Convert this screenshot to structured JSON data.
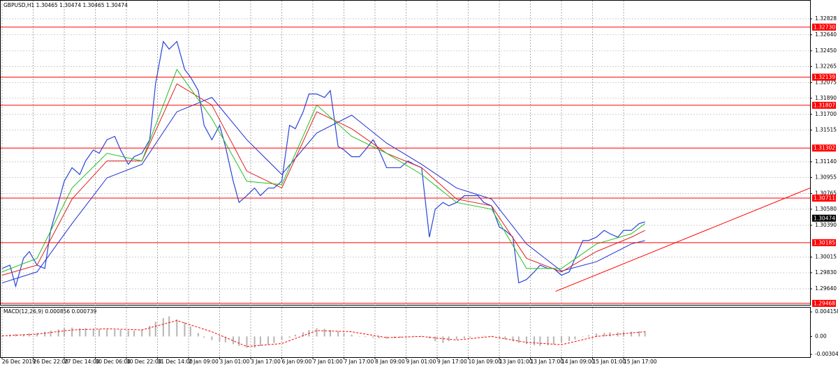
{
  "chart_data": [
    {
      "type": "line",
      "title": "GBPUSD,H1 1.30465 1.30474 1.30465 1.30474",
      "xlim": [
        0,
        416
      ],
      "ylim": [
        1.29451,
        1.3305
      ],
      "grid": true,
      "xticks": [
        {
          "value": 0,
          "label": "26 Dec 2019"
        },
        {
          "value": 16,
          "label": "26 Dec 22:00"
        },
        {
          "value": 32,
          "label": "27 Dec 14:00"
        },
        {
          "value": 48,
          "label": "30 Dec 06:00"
        },
        {
          "value": 64,
          "label": "30 Dec 22:00"
        },
        {
          "value": 80,
          "label": "31 Dec 14:00"
        },
        {
          "value": 96,
          "label": "2 Jan 09:00"
        },
        {
          "value": 112,
          "label": "3 Jan 01:00"
        },
        {
          "value": 128,
          "label": "3 Jan 17:00"
        },
        {
          "value": 144,
          "label": "6 Jan 09:00"
        },
        {
          "value": 160,
          "label": "7 Jan 01:00"
        },
        {
          "value": 176,
          "label": "7 Jan 17:00"
        },
        {
          "value": 192,
          "label": "8 Jan 09:00"
        },
        {
          "value": 208,
          "label": "9 Jan 01:00"
        },
        {
          "value": 224,
          "label": "9 Jan 17:00"
        },
        {
          "value": 240,
          "label": "10 Jan 09:00"
        },
        {
          "value": 256,
          "label": "13 Jan 01:00"
        },
        {
          "value": 272,
          "label": "13 Jan 17:00"
        },
        {
          "value": 288,
          "label": "14 Jan 09:00"
        },
        {
          "value": 304,
          "label": "15 Jan 01:00"
        },
        {
          "value": 320,
          "label": "15 Jan 17:00"
        }
      ],
      "yticks": [
        1.32828,
        {
          "value": 1.3264,
          "label": "1.32640"
        },
        {
          "value": 1.3245,
          "label": "1.32450"
        },
        1.32265,
        1.32075,
        {
          "value": 1.3189,
          "label": "1.31890"
        },
        {
          "value": 1.317,
          "label": "1.31700"
        },
        1.31515,
        {
          "value": 1.3114,
          "label": "1.31140"
        },
        1.30955,
        1.30765,
        {
          "value": 1.3058,
          "label": "1.30580"
        },
        {
          "value": 1.3039,
          "label": "1.30390"
        },
        1.30015,
        {
          "value": 1.2983,
          "label": "1.29830"
        },
        {
          "value": 1.2964,
          "label": "1.29640"
        }
      ],
      "series": [
        {
          "color": "#2846d8",
          "x": [
            0,
            4,
            7,
            11,
            14,
            18,
            22,
            25,
            29,
            32,
            36,
            40,
            43,
            47,
            50,
            54,
            58,
            61,
            65,
            68,
            72,
            76,
            79,
            83,
            86,
            90,
            94,
            97,
            101,
            104,
            108,
            112,
            115,
            119,
            122,
            126,
            130,
            133,
            137,
            140,
            144,
            148,
            151,
            155,
            158,
            162,
            166,
            169,
            173,
            176,
            180,
            184,
            187,
            191,
            194,
            198,
            202,
            205,
            209,
            212,
            216,
            220,
            223,
            227,
            230,
            234,
            238,
            241,
            245,
            248,
            252,
            256,
            259,
            263,
            266,
            270,
            274,
            277,
            281,
            284,
            288,
            292,
            295,
            299,
            302,
            306,
            310,
            313,
            317,
            320,
            324,
            328,
            331
          ],
          "values": [
            1.2988,
            1.2992,
            1.2967,
            1.3,
            1.3008,
            1.2992,
            1.2988,
            1.3033,
            1.3066,
            1.3091,
            1.3107,
            1.3099,
            1.3115,
            1.3128,
            1.3124,
            1.314,
            1.3144,
            1.3128,
            1.3111,
            1.312,
            1.3124,
            1.314,
            1.3206,
            1.3256,
            1.3247,
            1.3256,
            1.3223,
            1.3214,
            1.3198,
            1.3157,
            1.314,
            1.3157,
            1.3132,
            1.3091,
            1.3066,
            1.3074,
            1.3083,
            1.3074,
            1.3083,
            1.3083,
            1.3091,
            1.3157,
            1.3153,
            1.3173,
            1.3194,
            1.3194,
            1.319,
            1.3198,
            1.3132,
            1.3128,
            1.312,
            1.312,
            1.3128,
            1.314,
            1.3128,
            1.3107,
            1.3107,
            1.3107,
            1.3115,
            1.3111,
            1.3107,
            1.3025,
            1.3058,
            1.3066,
            1.3062,
            1.3066,
            1.3074,
            1.3074,
            1.3074,
            1.3066,
            1.3062,
            1.3037,
            1.3033,
            1.3025,
            1.2971,
            1.2975,
            1.2984,
            1.2992,
            1.2988,
            1.2988,
            1.298,
            1.2984,
            1.3,
            1.3021,
            1.3021,
            1.3025,
            1.3033,
            1.3029,
            1.3025,
            1.3033,
            1.3033,
            1.3041,
            1.3043
          ]
        },
        {
          "color": "#1f2fd0",
          "x": [
            0,
            18,
            36,
            54,
            72,
            90,
            108,
            126,
            144,
            162,
            180,
            198,
            216,
            234,
            252,
            270,
            288,
            306,
            324,
            331
          ],
          "values": [
            1.2971,
            1.2984,
            1.3041,
            1.3095,
            1.3111,
            1.3173,
            1.319,
            1.314,
            1.3099,
            1.3148,
            1.3169,
            1.3136,
            1.3111,
            1.3083,
            1.307,
            1.3017,
            1.2985,
            1.2996,
            1.3017,
            1.3021
          ]
        },
        {
          "color": "#e02020",
          "x": [
            0,
            18,
            36,
            54,
            72,
            90,
            108,
            126,
            144,
            162,
            180,
            198,
            216,
            234,
            252,
            270,
            288,
            306,
            324,
            331
          ],
          "values": [
            1.298,
            1.2992,
            1.307,
            1.3115,
            1.3115,
            1.3206,
            1.3181,
            1.3103,
            1.3083,
            1.3173,
            1.3153,
            1.3124,
            1.3107,
            1.307,
            1.3062,
            1.3,
            1.2984,
            1.3008,
            1.3025,
            1.3033
          ]
        },
        {
          "color": "#20c020",
          "x": [
            0,
            18,
            36,
            54,
            72,
            90,
            108,
            126,
            144,
            162,
            180,
            198,
            216,
            234,
            252,
            270,
            288,
            306,
            324,
            331
          ],
          "values": [
            1.2984,
            1.3,
            1.3083,
            1.3124,
            1.3115,
            1.3223,
            1.3165,
            1.3091,
            1.3087,
            1.3181,
            1.3144,
            1.3124,
            1.3099,
            1.3066,
            1.3058,
            1.2988,
            1.2988,
            1.3017,
            1.3029,
            1.3041
          ]
        }
      ],
      "hlines": [
        {
          "value": 1.3273,
          "label": "1.32730"
        },
        {
          "value": 1.32139,
          "label": "1.32139"
        },
        {
          "value": 1.31807,
          "label": "1.31807"
        },
        {
          "value": 1.31302,
          "label": "1.31302"
        },
        {
          "value": 1.30711,
          "label": "1.30711"
        },
        {
          "value": 1.30185,
          "label": "1.30185"
        },
        {
          "value": 1.29468,
          "label": "1.29468"
        }
      ],
      "hline_color": "#ff0000",
      "trendline": {
        "x": [
          285,
          416
        ],
        "y": [
          1.2961,
          1.3083
        ],
        "color": "#ff0000"
      },
      "last_price": 1.30474
    },
    {
      "type": "macd",
      "title": "MACD(12,26,9) 0.000856 0.000739",
      "xlim": [
        0,
        416
      ],
      "ylim": [
        -0.0035,
        0.005
      ],
      "yticks": [
        0.004158,
        {
          "value": 0,
          "label": "0.00"
        },
        -0.003041
      ],
      "color": "#b4b4b4",
      "x": [
        0,
        4,
        7,
        11,
        14,
        18,
        22,
        25,
        29,
        32,
        36,
        40,
        43,
        47,
        50,
        54,
        58,
        61,
        65,
        68,
        72,
        76,
        79,
        83,
        86,
        90,
        94,
        97,
        101,
        104,
        108,
        112,
        115,
        119,
        122,
        126,
        130,
        133,
        137,
        140,
        144,
        148,
        151,
        155,
        158,
        162,
        166,
        169,
        173,
        176,
        180,
        184,
        187,
        191,
        194,
        198,
        202,
        205,
        209,
        212,
        216,
        220,
        223,
        227,
        230,
        234,
        238,
        241,
        245,
        248,
        252,
        256,
        259,
        263,
        266,
        270,
        274,
        277,
        281,
        284,
        288,
        292,
        295,
        299,
        302,
        306,
        310,
        313,
        317,
        320,
        324,
        328,
        331
      ],
      "values": [
        0.0002,
        0.0003,
        0.0004,
        0.0004,
        0.0005,
        0.0006,
        0.0008,
        0.001,
        0.0012,
        0.0014,
        0.0015,
        0.0014,
        0.0014,
        0.0013,
        0.0012,
        0.0012,
        0.0011,
        0.0011,
        0.001,
        0.001,
        0.0012,
        0.0018,
        0.0025,
        0.0031,
        0.0034,
        0.0029,
        0.0024,
        0.0017,
        0.0006,
        -0.0002,
        -0.0006,
        -0.0008,
        -0.001,
        -0.0013,
        -0.0016,
        -0.0019,
        -0.0019,
        -0.0016,
        -0.0014,
        -0.0011,
        -0.0006,
        -0.0002,
        0.0003,
        0.0007,
        0.0011,
        0.0014,
        0.0013,
        0.0011,
        0.0009,
        0.0006,
        0.0003,
        0,
        -0.0001,
        -0.0002,
        -0.0003,
        -0.0004,
        -0.0003,
        -0.0002,
        0,
        0.0001,
        0.0001,
        -0.0003,
        -0.0008,
        -0.0011,
        -0.0008,
        -0.0005,
        -0.0003,
        -0.0002,
        0,
        0.0001,
        0.0001,
        -0.0002,
        -0.0005,
        -0.0008,
        -0.0011,
        -0.0013,
        -0.0015,
        -0.0016,
        -0.0015,
        -0.0013,
        -0.0011,
        -0.0008,
        -0.0005,
        -0.0001,
        0.0002,
        0.0005,
        0.0006,
        0.0007,
        0.0007,
        0.0008,
        0.0008,
        0.0009,
        0.0009
      ],
      "signal": {
        "color": "#ff0000",
        "x": [
          0,
          18,
          36,
          54,
          72,
          90,
          108,
          126,
          144,
          162,
          180,
          198,
          216,
          234,
          252,
          270,
          288,
          306,
          324,
          331
        ],
        "values": [
          0.0001,
          0.0004,
          0.0011,
          0.0013,
          0.0011,
          0.0027,
          0.0008,
          -0.0017,
          -0.0012,
          0.001,
          0.0008,
          -0.0002,
          0,
          -0.0006,
          0,
          -0.001,
          -0.0014,
          0,
          0.0006,
          0.0008
        ]
      }
    }
  ]
}
